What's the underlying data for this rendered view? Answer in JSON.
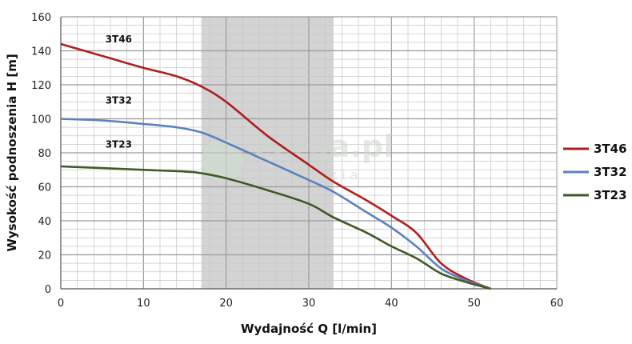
{
  "chart_data": {
    "type": "line",
    "xlabel": "Wydajność Q [l/min]",
    "ylabel": "Wysokość podnoszenia H [m]",
    "xlim": [
      0,
      60
    ],
    "ylim": [
      0,
      160
    ],
    "x_ticks": [
      0,
      10,
      20,
      30,
      40,
      50,
      60
    ],
    "y_ticks": [
      0,
      20,
      40,
      60,
      80,
      100,
      120,
      140,
      160
    ],
    "grid": true,
    "legend": "right",
    "highlight_band": {
      "x_from": 17,
      "x_to": 33,
      "color": "#d3d3d3"
    },
    "series": [
      {
        "name": "3T46",
        "color": "#b01e1e",
        "label_at": [
          7,
          145
        ],
        "points": [
          [
            0,
            144
          ],
          [
            5,
            137
          ],
          [
            10,
            130
          ],
          [
            14,
            125
          ],
          [
            17,
            119
          ],
          [
            20,
            110
          ],
          [
            25,
            90
          ],
          [
            30,
            73
          ],
          [
            33,
            63
          ],
          [
            37,
            52
          ],
          [
            40,
            43
          ],
          [
            43,
            33
          ],
          [
            46,
            15
          ],
          [
            49,
            6
          ],
          [
            52,
            0
          ]
        ]
      },
      {
        "name": "3T32",
        "color": "#5a82c0",
        "label_at": [
          7,
          109
        ],
        "points": [
          [
            0,
            100
          ],
          [
            5,
            99
          ],
          [
            10,
            97
          ],
          [
            14,
            95
          ],
          [
            17,
            92
          ],
          [
            20,
            86
          ],
          [
            25,
            75
          ],
          [
            30,
            64
          ],
          [
            33,
            57
          ],
          [
            37,
            45
          ],
          [
            40,
            36
          ],
          [
            43,
            25
          ],
          [
            46,
            12
          ],
          [
            49,
            5
          ],
          [
            52,
            0
          ]
        ]
      },
      {
        "name": "3T23",
        "color": "#3e5a28",
        "label_at": [
          7,
          83
        ],
        "points": [
          [
            0,
            72
          ],
          [
            5,
            71
          ],
          [
            10,
            70
          ],
          [
            15,
            69
          ],
          [
            17,
            68
          ],
          [
            20,
            65
          ],
          [
            25,
            58
          ],
          [
            30,
            50
          ],
          [
            33,
            42
          ],
          [
            37,
            33
          ],
          [
            40,
            25
          ],
          [
            43,
            18
          ],
          [
            46,
            9
          ],
          [
            49,
            4
          ],
          [
            52,
            0
          ]
        ]
      }
    ]
  },
  "watermark": {
    "title": "zerga.pl",
    "subtitle": "narzędzia"
  }
}
